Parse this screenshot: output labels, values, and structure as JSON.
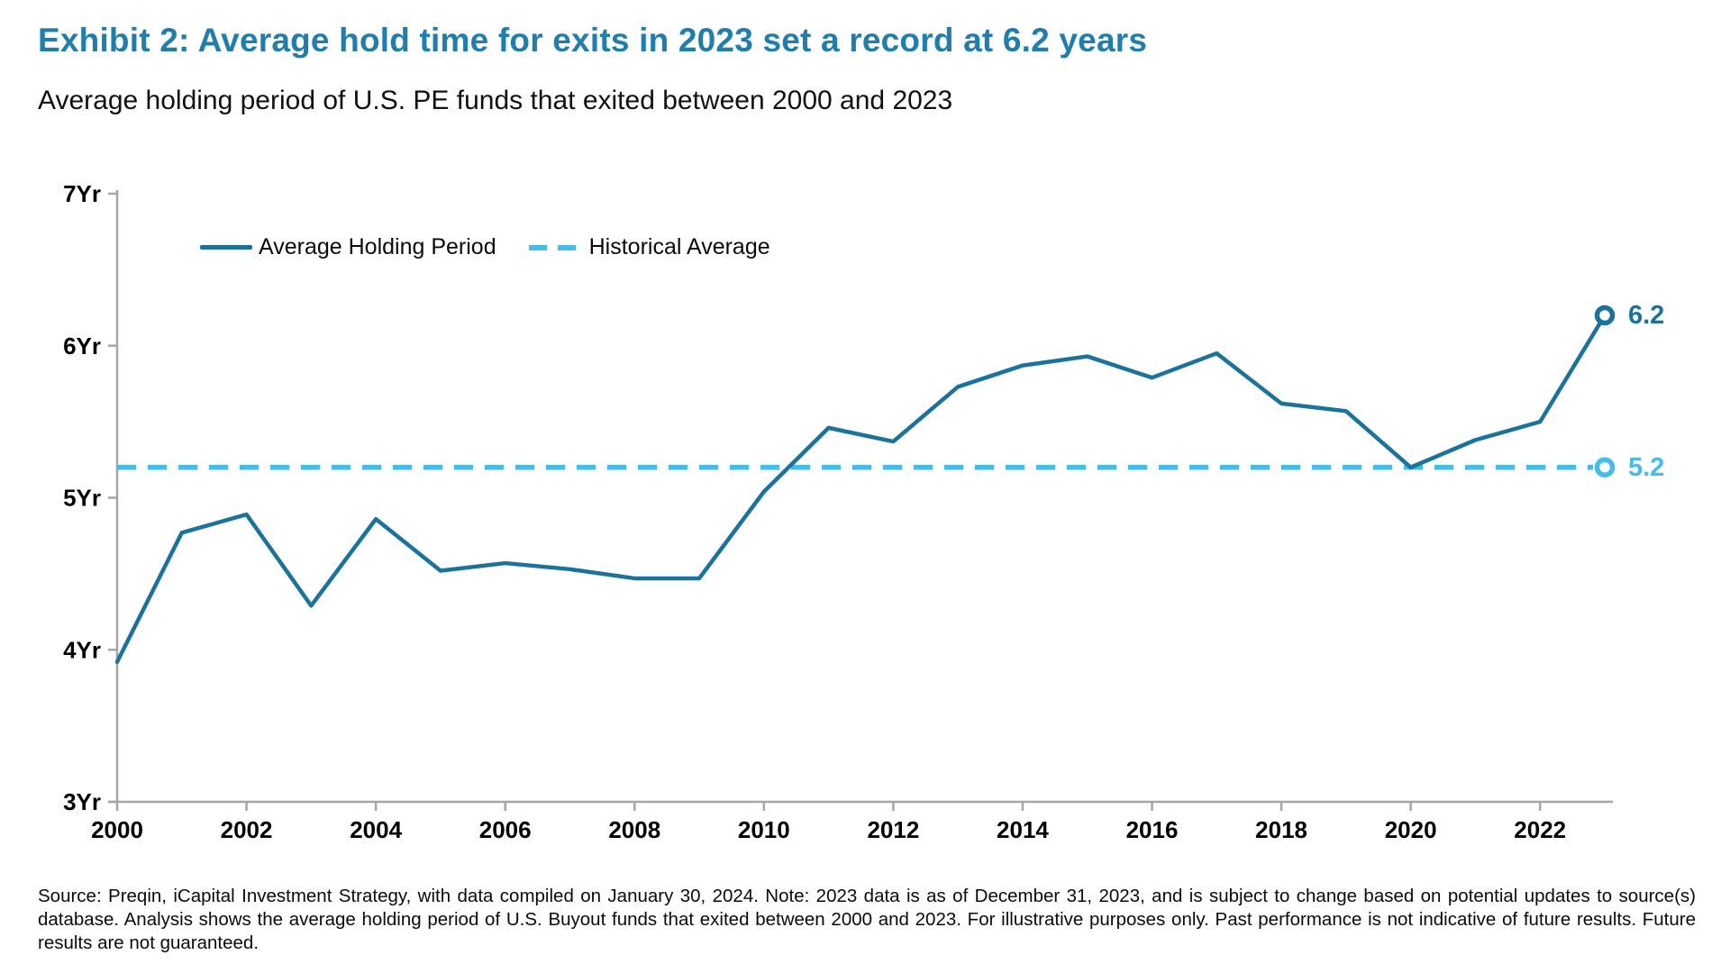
{
  "header": {
    "title": "Exhibit 2: Average hold time for exits in 2023 set a record at 6.2 years",
    "subtitle": "Average holding period of U.S. PE funds that exited between 2000 and 2023"
  },
  "colors": {
    "title_blue": "#1C7FB0",
    "series_blue": "#17749E",
    "historical_blue": "#41BDF1",
    "axis_gray": "#A6A6A6",
    "label_black": "#000000"
  },
  "chart_data": {
    "type": "line",
    "title": "Exhibit 2: Average hold time for exits in 2023 set a record at 6.2 years",
    "subtitle": "Average holding period of U.S. PE funds that exited between 2000 and 2023",
    "x": [
      2000,
      2001,
      2002,
      2003,
      2004,
      2005,
      2006,
      2007,
      2008,
      2009,
      2010,
      2011,
      2012,
      2013,
      2014,
      2015,
      2016,
      2017,
      2018,
      2019,
      2020,
      2021,
      2022,
      2023
    ],
    "series": [
      {
        "name": "Average Holding Period",
        "type": "line",
        "style": "solid",
        "color": "#17749E",
        "values": [
          3.92,
          4.77,
          4.89,
          4.29,
          4.86,
          4.52,
          4.57,
          4.53,
          4.47,
          4.47,
          5.04,
          5.46,
          5.37,
          5.73,
          5.87,
          5.93,
          5.79,
          5.95,
          5.62,
          5.57,
          5.2,
          5.38,
          5.5,
          6.2
        ],
        "end_label": "6.2"
      },
      {
        "name": "Historical Average",
        "type": "reference-line",
        "style": "dashed",
        "color": "#41BDF1",
        "value": 5.2,
        "end_label": "5.2"
      }
    ],
    "ylim": [
      3,
      7
    ],
    "yticks": {
      "values": [
        3,
        4,
        5,
        6,
        7
      ],
      "labels": [
        "3Yr",
        "4Yr",
        "5Yr",
        "6Yr",
        "7Yr"
      ]
    },
    "xticks": {
      "values": [
        2000,
        2002,
        2004,
        2006,
        2008,
        2010,
        2012,
        2014,
        2016,
        2018,
        2020,
        2022
      ],
      "labels": [
        "2000",
        "2002",
        "2004",
        "2006",
        "2008",
        "2010",
        "2012",
        "2014",
        "2016",
        "2018",
        "2020",
        "2022"
      ]
    },
    "grid": false,
    "legend_position": "top-left-inside"
  },
  "footer": {
    "source": "Source: Preqin, iCapital Investment Strategy, with data compiled on January 30, 2024. Note: 2023 data is as of December 31, 2023, and is subject to change based on potential updates to source(s) database. Analysis shows the average holding period of U.S. Buyout funds that exited between 2000 and 2023. For illustrative purposes only. Past performance is not indicative of future results. Future results are not guaranteed."
  }
}
